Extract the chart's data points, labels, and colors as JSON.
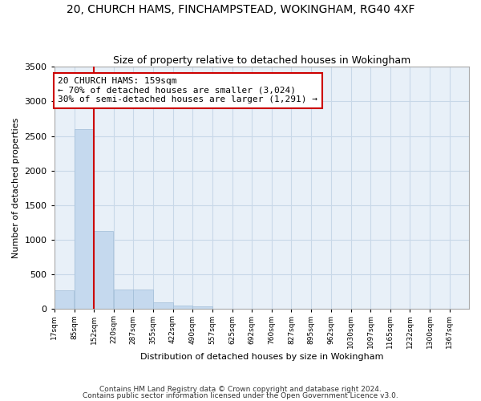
{
  "title": "20, CHURCH HAMS, FINCHAMPSTEAD, WOKINGHAM, RG40 4XF",
  "subtitle": "Size of property relative to detached houses in Wokingham",
  "xlabel": "Distribution of detached houses by size in Wokingham",
  "ylabel": "Number of detached properties",
  "bar_color": "#c5d9ee",
  "bar_edge_color": "#a0bdd8",
  "grid_color": "#c8d8e8",
  "background_color": "#e8f0f8",
  "annotation_box_color": "#cc0000",
  "annotation_text": "20 CHURCH HAMS: 159sqm\n← 70% of detached houses are smaller (3,024)\n30% of semi-detached houses are larger (1,291) →",
  "vline_x": 152,
  "vline_color": "#cc0000",
  "categories": [
    "17sqm",
    "85sqm",
    "152sqm",
    "220sqm",
    "287sqm",
    "355sqm",
    "422sqm",
    "490sqm",
    "557sqm",
    "625sqm",
    "692sqm",
    "760sqm",
    "827sqm",
    "895sqm",
    "962sqm",
    "1030sqm",
    "1097sqm",
    "1165sqm",
    "1232sqm",
    "1300sqm",
    "1367sqm"
  ],
  "bin_edges": [
    17,
    85,
    152,
    220,
    287,
    355,
    422,
    490,
    557,
    625,
    692,
    760,
    827,
    895,
    962,
    1030,
    1097,
    1165,
    1232,
    1300,
    1367
  ],
  "values": [
    270,
    2600,
    1130,
    285,
    285,
    95,
    55,
    40,
    0,
    0,
    0,
    0,
    0,
    0,
    0,
    0,
    0,
    0,
    0,
    0,
    0
  ],
  "ylim": [
    0,
    3500
  ],
  "yticks": [
    0,
    500,
    1000,
    1500,
    2000,
    2500,
    3000,
    3500
  ],
  "footnote1": "Contains HM Land Registry data © Crown copyright and database right 2024.",
  "footnote2": "Contains public sector information licensed under the Open Government Licence v3.0."
}
